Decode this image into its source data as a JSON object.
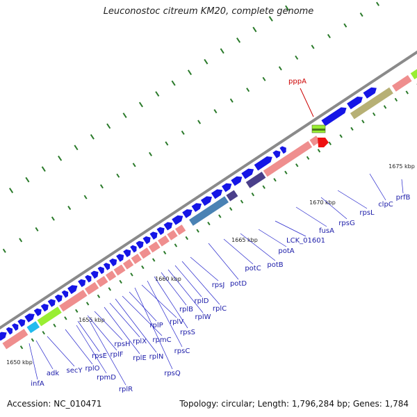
{
  "title": "Leuconostoc citreum KM20, complete genome",
  "footer": {
    "accession": "Accession: NC_010471",
    "stats": "Topology: circular; Length: 1,796,284 bp; Genes: 1,784"
  },
  "colors": {
    "forward_gene": "#1515e6",
    "reverse_gene": "#ef8e8e",
    "backbone": "#8a8a8a",
    "gc_tick": "#2a7a2a",
    "label_line": "#2222cc",
    "highlight": "#cc0000",
    "green_gene": "#99ee33",
    "cyan_gene": "#22bbee",
    "steel_gene": "#4a82b4",
    "purple_gene": "#4a3f8a",
    "olive_gene": "#b7b075"
  },
  "kbp_marks": [
    "1650 kbp",
    "1655 kbp",
    "1660 kbp",
    "1665 kbp",
    "1670 kbp",
    "1675 kbp"
  ],
  "gene_labels": [
    "infA",
    "adk",
    "secY",
    "rplO",
    "rpmD",
    "rplR",
    "rpsE",
    "rplF",
    "rpsH",
    "rplE",
    "rplX",
    "rplN",
    "rpmC",
    "rplP",
    "rpsQ",
    "rplV",
    "rpsC",
    "rpsS",
    "rplB",
    "rplW",
    "rplD",
    "rplC",
    "rpsJ",
    "potD",
    "potC",
    "potB",
    "potA",
    "LCK_01601",
    "fusA",
    "rpsG",
    "rpsL",
    "clpC",
    "prfB"
  ],
  "highlight_label": "pppA"
}
